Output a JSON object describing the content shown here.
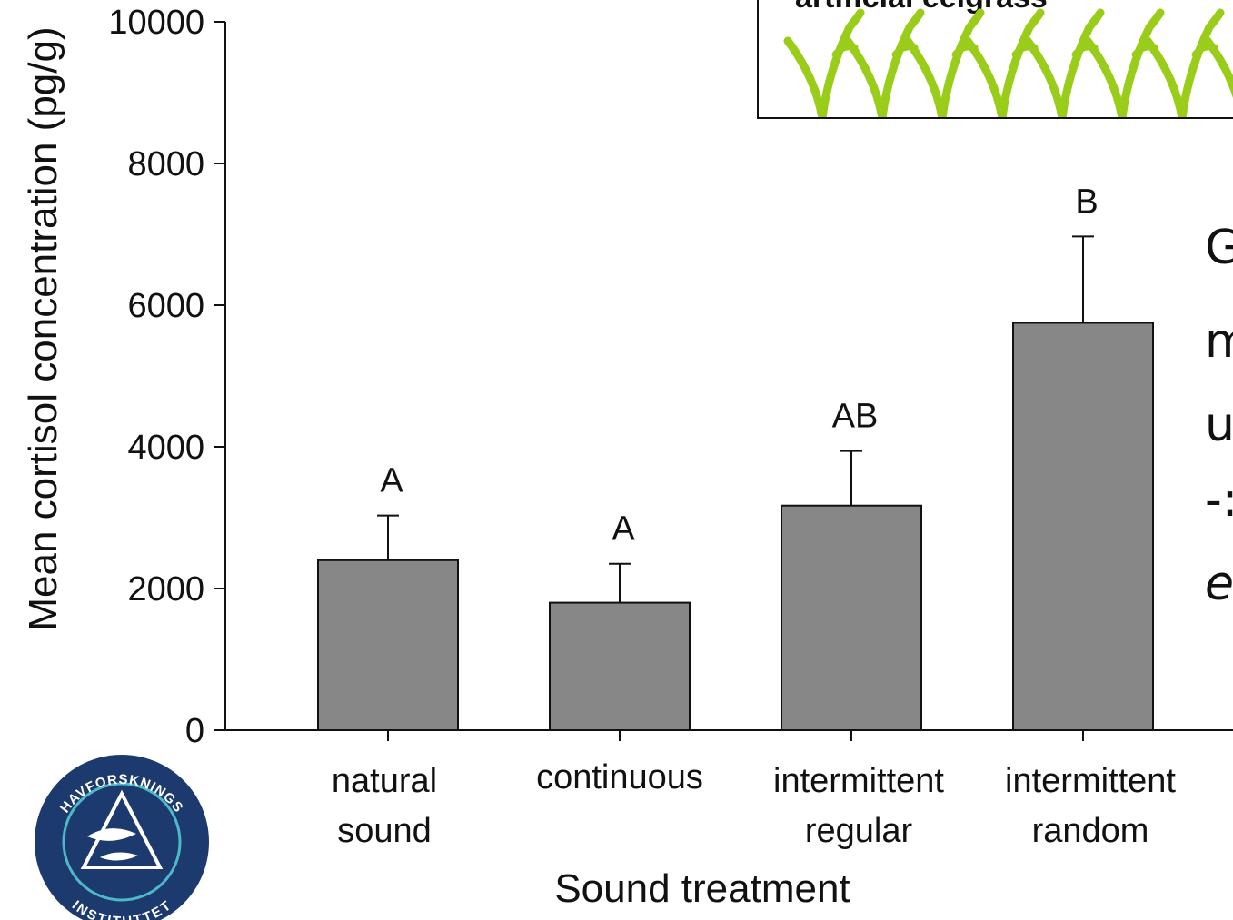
{
  "chart_data": {
    "type": "bar",
    "categories": [
      [
        "natural",
        "sound"
      ],
      [
        "continuous"
      ],
      [
        "intermittent",
        "regular"
      ],
      [
        "intermittent",
        "random"
      ]
    ],
    "values": [
      2400,
      1800,
      3170,
      5750
    ],
    "error_bars": [
      630,
      550,
      770,
      1220
    ],
    "significance_labels": [
      "A",
      "A",
      "AB",
      "B"
    ],
    "xlabel": "Sound treatment",
    "ylabel": "Mean cortisol concentration (pg/g)",
    "ylim": [
      0,
      10000
    ],
    "yticks": [
      0,
      2000,
      4000,
      6000,
      8000,
      10000
    ],
    "bar_color": "#878787",
    "grid": false
  },
  "inset": {
    "label": "artificial eelgrass",
    "grass_color": "#9acd1a"
  },
  "side_text_fragments": [
    "G",
    "m",
    "u",
    "-:",
    "e"
  ],
  "logo": {
    "top_text": "HAVFORSKNINGS",
    "bottom_text": "INSTITUTTET",
    "color": "#1d3a6e"
  }
}
